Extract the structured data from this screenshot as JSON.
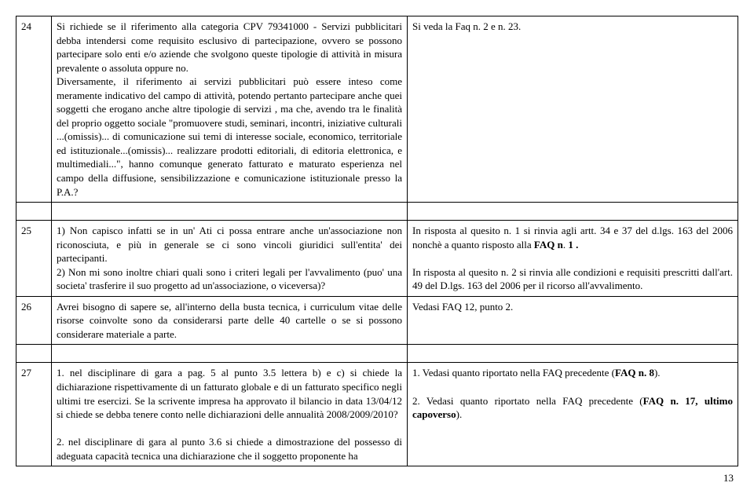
{
  "rows": {
    "r24": {
      "num": "24",
      "q": "Si richiede se il riferimento alla categoria CPV 79341000 - Servizi pubblicitari debba intendersi come requisito esclusivo di partecipazione, ovvero se possono partecipare solo enti e/o aziende che svolgono queste tipologie di attività in misura prevalente o assoluta oppure no.\nDiversamente, il riferimento ai servizi pubblicitari può essere inteso come meramente indicativo del campo di attività, potendo pertanto partecipare anche quei soggetti che erogano anche altre tipologie di servizi , ma che, avendo tra le finalità del proprio oggetto sociale \"promuovere studi, seminari, incontri, iniziative culturali ...(omissis)... di comunicazione sui temi di interesse sociale, economico, territoriale ed istituzionale...(omissis)... realizzare prodotti editoriali, di editoria elettronica, e multimediali...\", hanno comunque generato fatturato e maturato esperienza nel campo della diffusione, sensibilizzazione e comunicazione istituzionale presso la P.A.?",
      "a": "Si veda la Faq n. 2 e n. 23."
    },
    "r25": {
      "num": "25",
      "q": "1) Non capisco infatti se in un' Ati ci possa entrare anche un'associazione non riconosciuta, e più in generale se ci sono vincoli giuridici sull'entita' dei partecipanti.\n2) Non mi sono inoltre chiari quali sono i criteri legali per l'avvalimento (puo' una societa' trasferire il suo progetto ad un'associazione, o viceversa)?",
      "a": "In risposta al quesito n. 1 si rinvia agli artt. 34 e 37 del d.lgs. 163 del 2006 nonchè a quanto risposto alla FAQ n. 1 .\n\nIn risposta al quesito n. 2 si rinvia alle condizioni e requisiti prescritti dall'art. 49 del D.lgs. 163 del 2006 per il ricorso all'avvalimento."
    },
    "r26": {
      "num": "26",
      "q": "Avrei bisogno di sapere se, all'interno della busta tecnica, i curriculum vitae delle risorse coinvolte sono da considerarsi parte delle 40 cartelle o se si possono considerare materiale a parte.",
      "a": "Vedasi FAQ 12, punto 2."
    },
    "r27": {
      "num": "27",
      "q1": "1. nel disciplinare di gara a pag. 5 al punto 3.5 lettera b) e c) si chiede la dichiarazione rispettivamente di un fatturato globale e di un fatturato specifico negli ultimi tre esercizi. Se la scrivente impresa ha approvato il bilancio in data 13/04/12 si chiede se debba tenere conto nelle dichiarazioni delle annualità 2008/2009/2010?",
      "q2": "2. nel disciplinare di gara al punto 3.6 si chiede a dimostrazione del possesso di adeguata capacità tecnica una dichiarazione che il soggetto proponente ha",
      "a": "1. Vedasi quanto riportato nella FAQ precedente (FAQ n. 8).\n\n2. Vedasi quanto riportato nella FAQ precedente (FAQ n. 17, ultimo capoverso)."
    }
  },
  "pagenum": "13"
}
